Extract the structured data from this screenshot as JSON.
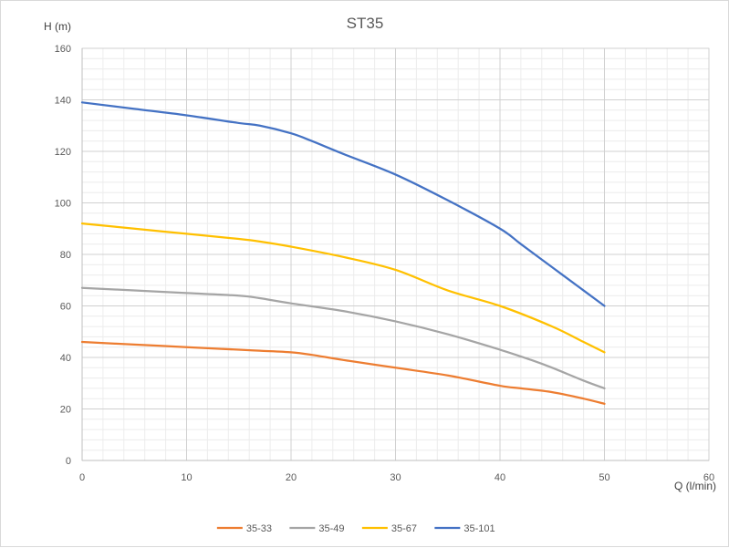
{
  "chart_data": {
    "type": "line",
    "title": "ST35",
    "xlabel": "Q (l/min)",
    "ylabel": "H (m)",
    "xlim": [
      0,
      60
    ],
    "ylim": [
      0,
      160
    ],
    "x_ticks": [
      0,
      10,
      20,
      30,
      40,
      50,
      60
    ],
    "y_ticks": [
      0,
      20,
      40,
      60,
      80,
      100,
      120,
      140,
      160
    ],
    "grid": true,
    "legend_position": "bottom",
    "series": [
      {
        "name": "35-33",
        "color": "#ed7d31",
        "x": [
          0,
          5,
          10,
          15,
          17,
          20,
          22,
          25,
          30,
          35,
          40,
          42,
          45,
          48,
          50
        ],
        "y": [
          46,
          45,
          44,
          43,
          42.6,
          42,
          41,
          39,
          36,
          33,
          29,
          28,
          26.5,
          24,
          22
        ]
      },
      {
        "name": "35-49",
        "color": "#a5a5a5",
        "x": [
          0,
          5,
          10,
          15,
          17,
          20,
          25,
          30,
          35,
          40,
          43,
          45,
          48,
          50
        ],
        "y": [
          67,
          66,
          65,
          64,
          63,
          61,
          58,
          54,
          49,
          43,
          39,
          36,
          31,
          28
        ]
      },
      {
        "name": "35-67",
        "color": "#ffc000",
        "x": [
          0,
          5,
          10,
          15,
          17,
          20,
          25,
          30,
          35,
          40,
          45,
          48,
          50
        ],
        "y": [
          92,
          90,
          88,
          86,
          85,
          83,
          79,
          74,
          66,
          60,
          52,
          46,
          42
        ]
      },
      {
        "name": "35-101",
        "color": "#4472c4",
        "x": [
          0,
          5,
          10,
          15,
          17,
          20,
          22,
          25,
          30,
          35,
          40,
          42,
          45,
          48,
          50
        ],
        "y": [
          139,
          136.5,
          134,
          131,
          130,
          127,
          124,
          119,
          111,
          101,
          90,
          84,
          75,
          66,
          60
        ]
      }
    ]
  }
}
